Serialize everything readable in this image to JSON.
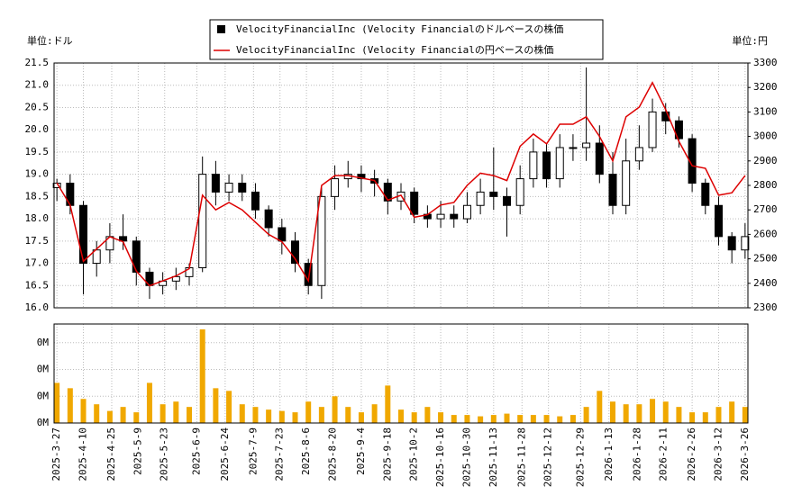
{
  "chart_data": [
    {
      "type": "candlestick",
      "y_unit_label": "単位:ドル",
      "y2_unit_label": "単位:円",
      "x": [
        "2025-3-27",
        "2025-4-3",
        "2025-4-10",
        "2025-4-17",
        "2025-4-24",
        "2025-5-1",
        "2025-5-8",
        "2025-5-15",
        "2025-5-22",
        "2025-5-29",
        "2025-6-5",
        "2025-6-12",
        "2025-6-19",
        "2025-6-26",
        "2025-7-3",
        "2025-7-10",
        "2025-7-17",
        "2025-7-24",
        "2025-7-31",
        "2025-8-7",
        "2025-8-14",
        "2025-8-21",
        "2025-8-28",
        "2025-9-4",
        "2025-9-11",
        "2025-9-18",
        "2025-9-25",
        "2025-10-2",
        "2025-10-9",
        "2025-10-16",
        "2025-10-23",
        "2025-10-30",
        "2025-11-6",
        "2025-11-13",
        "2025-11-20",
        "2025-11-27",
        "2025-12-4",
        "2025-12-11",
        "2025-12-18",
        "2025-12-25",
        "2026-1-1",
        "2026-1-8",
        "2026-1-15",
        "2026-1-22",
        "2026-1-29",
        "2026-2-5",
        "2026-2-12",
        "2026-2-19",
        "2026-2-26",
        "2026-3-5",
        "2026-3-12",
        "2026-3-19",
        "2026-3-26"
      ],
      "series": [
        {
          "name": "VelocityFinancialInc (Velocity Financialのドルベースの株価",
          "color": "#000000",
          "open": [
            18.7,
            18.8,
            18.3,
            17.0,
            17.3,
            17.6,
            17.5,
            16.8,
            16.5,
            16.6,
            16.7,
            16.9,
            19.0,
            18.6,
            18.8,
            18.6,
            18.2,
            17.8,
            17.5,
            17.0,
            16.5,
            18.5,
            18.9,
            19.0,
            18.9,
            18.8,
            18.4,
            18.6,
            18.1,
            18.0,
            18.1,
            18.0,
            18.3,
            18.6,
            18.5,
            18.3,
            18.9,
            19.5,
            18.9,
            19.6,
            19.6,
            19.7,
            19.0,
            18.3,
            19.3,
            19.6,
            20.4,
            20.2,
            19.8,
            18.8,
            18.3,
            17.6,
            17.3
          ],
          "high": [
            18.9,
            19.0,
            18.4,
            17.5,
            17.9,
            18.1,
            17.6,
            16.9,
            16.8,
            16.9,
            17.0,
            19.4,
            19.3,
            19.0,
            19.0,
            18.8,
            18.3,
            18.0,
            17.7,
            17.1,
            18.7,
            19.2,
            19.3,
            19.2,
            19.1,
            18.9,
            18.8,
            18.7,
            18.3,
            18.4,
            18.3,
            18.6,
            18.9,
            19.6,
            18.7,
            19.2,
            19.8,
            19.7,
            19.9,
            19.9,
            21.4,
            20.1,
            19.5,
            19.8,
            20.1,
            20.7,
            20.6,
            20.3,
            19.9,
            18.9,
            18.5,
            17.7,
            17.9
          ],
          "low": [
            18.4,
            18.1,
            16.3,
            16.7,
            17.0,
            17.3,
            16.5,
            16.2,
            16.3,
            16.4,
            16.5,
            16.8,
            18.3,
            18.4,
            18.4,
            18.0,
            17.6,
            17.2,
            16.8,
            16.3,
            16.2,
            18.2,
            18.7,
            18.6,
            18.5,
            18.1,
            18.2,
            17.9,
            17.8,
            17.8,
            17.8,
            17.9,
            18.1,
            18.2,
            17.6,
            18.1,
            18.7,
            18.7,
            18.7,
            19.3,
            19.3,
            18.8,
            18.1,
            18.1,
            19.1,
            19.5,
            19.9,
            19.6,
            18.6,
            18.1,
            17.4,
            17.0,
            17.1
          ],
          "close": [
            18.8,
            18.3,
            17.0,
            17.3,
            17.6,
            17.5,
            16.8,
            16.5,
            16.6,
            16.7,
            16.9,
            19.0,
            18.6,
            18.8,
            18.6,
            18.2,
            17.8,
            17.5,
            17.0,
            16.5,
            18.5,
            18.9,
            19.0,
            18.9,
            18.8,
            18.4,
            18.6,
            18.1,
            18.0,
            18.1,
            18.0,
            18.3,
            18.6,
            18.5,
            18.3,
            18.9,
            19.5,
            18.9,
            19.6,
            19.6,
            19.7,
            19.0,
            18.3,
            19.3,
            19.6,
            20.4,
            20.2,
            19.8,
            18.8,
            18.3,
            17.6,
            17.3,
            17.6
          ]
        },
        {
          "name": "VelocityFinancialInc (Velocity Financialの円ベースの株価",
          "color": "#dd0000",
          "axis": "y2",
          "values": [
            2810,
            2720,
            2490,
            2540,
            2590,
            2570,
            2450,
            2390,
            2410,
            2430,
            2460,
            2760,
            2700,
            2730,
            2700,
            2650,
            2600,
            2570,
            2500,
            2410,
            2800,
            2840,
            2840,
            2830,
            2820,
            2740,
            2760,
            2670,
            2680,
            2720,
            2730,
            2800,
            2850,
            2840,
            2820,
            2960,
            3010,
            2970,
            3050,
            3050,
            3080,
            3000,
            2900,
            3080,
            3120,
            3220,
            3110,
            2980,
            2880,
            2870,
            2760,
            2770,
            2840
          ]
        }
      ],
      "ylim": [
        16,
        21.5
      ],
      "yticks": [
        {
          "value": 16,
          "label": "16.0"
        },
        {
          "value": 16.5,
          "label": "16.5"
        },
        {
          "value": 17,
          "label": "17.0"
        },
        {
          "value": 17.5,
          "label": "17.5"
        },
        {
          "value": 18,
          "label": "18.0"
        },
        {
          "value": 18.5,
          "label": "18.5"
        },
        {
          "value": 19,
          "label": "19.0"
        },
        {
          "value": 19.5,
          "label": "19.5"
        },
        {
          "value": 20,
          "label": "20.0"
        },
        {
          "value": 20.5,
          "label": "20.5"
        },
        {
          "value": 21,
          "label": "21.0"
        },
        {
          "value": 21.5,
          "label": "21.5"
        }
      ],
      "y2lim": [
        2300,
        3300
      ],
      "y2ticks": [
        2300,
        2400,
        2500,
        2600,
        2700,
        2800,
        2900,
        3000,
        3100,
        3200,
        3300
      ],
      "grid": true
    },
    {
      "type": "bar",
      "color": "#f0a800",
      "x": [
        "2025-3-27",
        "2025-4-3",
        "2025-4-10",
        "2025-4-17",
        "2025-4-24",
        "2025-5-1",
        "2025-5-8",
        "2025-5-15",
        "2025-5-22",
        "2025-5-29",
        "2025-6-5",
        "2025-6-12",
        "2025-6-19",
        "2025-6-26",
        "2025-7-3",
        "2025-7-10",
        "2025-7-17",
        "2025-7-24",
        "2025-7-31",
        "2025-8-7",
        "2025-8-14",
        "2025-8-21",
        "2025-8-28",
        "2025-9-4",
        "2025-9-11",
        "2025-9-18",
        "2025-9-25",
        "2025-10-2",
        "2025-10-9",
        "2025-10-16",
        "2025-10-23",
        "2025-10-30",
        "2025-11-6",
        "2025-11-13",
        "2025-11-20",
        "2025-11-27",
        "2025-12-4",
        "2025-12-11",
        "2025-12-18",
        "2025-12-25",
        "2026-1-1",
        "2026-1-8",
        "2026-1-15",
        "2026-1-22",
        "2026-1-29",
        "2026-2-5",
        "2026-2-12",
        "2026-2-19",
        "2026-2-26",
        "2026-3-5",
        "2026-3-12",
        "2026-3-19",
        "2026-3-26"
      ],
      "values": [
        150000,
        130000,
        90000,
        70000,
        45000,
        60000,
        40000,
        150000,
        70000,
        80000,
        60000,
        350000,
        130000,
        120000,
        70000,
        60000,
        50000,
        45000,
        40000,
        80000,
        60000,
        100000,
        60000,
        40000,
        70000,
        140000,
        50000,
        40000,
        60000,
        40000,
        30000,
        30000,
        25000,
        30000,
        35000,
        30000,
        30000,
        30000,
        25000,
        30000,
        60000,
        120000,
        80000,
        70000,
        70000,
        90000,
        80000,
        60000,
        40000,
        40000,
        60000,
        80000,
        60000
      ],
      "ylim": [
        0,
        370000
      ],
      "yticks": [
        {
          "value": 0,
          "label": "0M"
        },
        {
          "value": 100000,
          "label": "0M"
        },
        {
          "value": 200000,
          "label": "0M"
        },
        {
          "value": 300000,
          "label": "0M"
        }
      ],
      "xticks": [
        "2025-3-27",
        "2025-4-10",
        "2025-4-25",
        "2025-5-9",
        "2025-5-23",
        "2025-6-9",
        "2025-6-24",
        "2025-7-9",
        "2025-7-23",
        "2025-8-6",
        "2025-8-20",
        "2025-9-4",
        "2025-9-18",
        "2025-10-2",
        "2025-10-16",
        "2025-10-30",
        "2025-11-13",
        "2025-11-28",
        "2025-12-12",
        "2025-12-29",
        "2026-1-13",
        "2026-1-28",
        "2026-2-11",
        "2026-2-26",
        "2026-3-12",
        "2026-3-26"
      ],
      "grid": true
    }
  ]
}
